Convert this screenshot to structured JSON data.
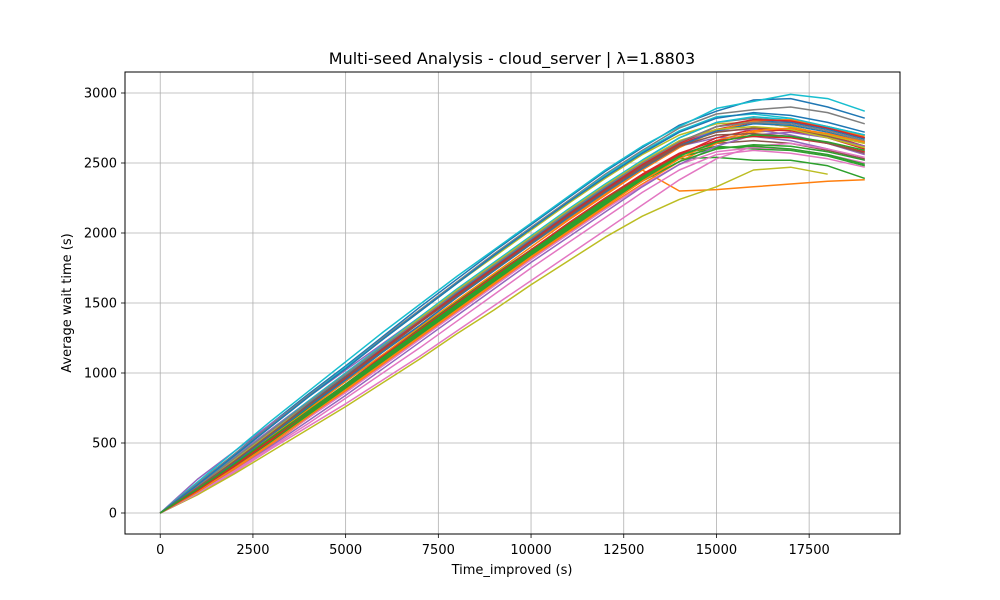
{
  "chart_data": {
    "type": "line",
    "title": "Multi-seed Analysis - cloud_server | λ=1.8803",
    "xlabel": "Time_improved (s)",
    "ylabel": "Average wait time (s)",
    "xlim": [
      -950,
      19950
    ],
    "ylim": [
      -150,
      3150
    ],
    "xticks": [
      0,
      2500,
      5000,
      7500,
      10000,
      12500,
      15000,
      17500
    ],
    "xtick_labels": [
      "0",
      "2500",
      "5000",
      "7500",
      "10000",
      "12500",
      "15000",
      "17500"
    ],
    "yticks": [
      0,
      500,
      1000,
      1500,
      2000,
      2500,
      3000
    ],
    "ytick_labels": [
      "0",
      "500",
      "1000",
      "1500",
      "2000",
      "2500",
      "3000"
    ],
    "grid": true,
    "legend": "none",
    "x": [
      0,
      1000,
      2000,
      3000,
      4000,
      5000,
      6000,
      7000,
      8000,
      9000,
      10000,
      11000,
      12000,
      13000,
      14000,
      15000,
      16000,
      17000,
      18000,
      19000
    ],
    "series": [
      {
        "color": "#1f77b4",
        "values": [
          0,
          210,
          420,
          640,
          850,
          1050,
          1260,
          1470,
          1670,
          1870,
          2060,
          2250,
          2440,
          2610,
          2770,
          2870,
          2950,
          2960,
          2900,
          2820
        ]
      },
      {
        "color": "#ff7f0e",
        "values": [
          0,
          160,
          350,
          550,
          750,
          950,
          1150,
          1340,
          1540,
          1730,
          1920,
          2100,
          2280,
          2450,
          2300,
          2310,
          2330,
          2350,
          2370,
          2380
        ]
      },
      {
        "color": "#2ca02c",
        "values": [
          0,
          150,
          330,
          520,
          710,
          900,
          1090,
          1280,
          1470,
          1660,
          1850,
          2030,
          2210,
          2380,
          2530,
          2540,
          2520,
          2520,
          2480,
          2390
        ]
      },
      {
        "color": "#d62728",
        "values": [
          0,
          170,
          360,
          560,
          760,
          960,
          1160,
          1360,
          1560,
          1750,
          1940,
          2130,
          2310,
          2490,
          2630,
          2740,
          2790,
          2760,
          2700,
          2620
        ]
      },
      {
        "color": "#9467bd",
        "values": [
          0,
          240,
          440,
          640,
          830,
          1020,
          1210,
          1400,
          1590,
          1780,
          1960,
          2150,
          2330,
          2500,
          2620,
          2680,
          2690,
          2660,
          2600,
          2520
        ]
      },
      {
        "color": "#8c564b",
        "values": [
          0,
          160,
          340,
          540,
          730,
          920,
          1110,
          1300,
          1500,
          1690,
          1880,
          2060,
          2240,
          2410,
          2560,
          2640,
          2660,
          2640,
          2590,
          2530
        ]
      },
      {
        "color": "#e377c2",
        "values": [
          0,
          130,
          290,
          460,
          620,
          780,
          950,
          1120,
          1300,
          1480,
          1660,
          1840,
          2020,
          2200,
          2380,
          2530,
          2620,
          2640,
          2600,
          2540
        ]
      },
      {
        "color": "#7f7f7f",
        "values": [
          0,
          190,
          390,
          590,
          790,
          990,
          1190,
          1390,
          1590,
          1780,
          1970,
          2160,
          2340,
          2520,
          2680,
          2790,
          2820,
          2800,
          2750,
          2680
        ]
      },
      {
        "color": "#bcbd22",
        "values": [
          0,
          130,
          280,
          440,
          600,
          760,
          930,
          1100,
          1280,
          1450,
          1630,
          1800,
          1970,
          2120,
          2240,
          2330,
          2450,
          2470,
          2420,
          null
        ]
      },
      {
        "color": "#17becf",
        "values": [
          0,
          220,
          440,
          660,
          870,
          1080,
          1290,
          1490,
          1690,
          1880,
          2070,
          2260,
          2450,
          2620,
          2760,
          2890,
          2940,
          2990,
          2960,
          2870
        ]
      },
      {
        "color": "#1f77b4",
        "values": [
          0,
          180,
          380,
          580,
          780,
          980,
          1180,
          1380,
          1570,
          1760,
          1950,
          2140,
          2320,
          2490,
          2650,
          2760,
          2800,
          2790,
          2740,
          2670
        ]
      },
      {
        "color": "#ff7f0e",
        "values": [
          0,
          140,
          310,
          490,
          680,
          870,
          1060,
          1250,
          1440,
          1630,
          1820,
          2000,
          2180,
          2350,
          2510,
          2640,
          2720,
          2740,
          2700,
          2640
        ]
      },
      {
        "color": "#2ca02c",
        "values": [
          0,
          170,
          360,
          560,
          750,
          940,
          1130,
          1320,
          1510,
          1700,
          1880,
          2060,
          2240,
          2410,
          2560,
          2620,
          2600,
          2590,
          2550,
          2480
        ]
      },
      {
        "color": "#d62728",
        "values": [
          0,
          150,
          330,
          520,
          720,
          910,
          1100,
          1290,
          1490,
          1680,
          1870,
          2050,
          2230,
          2410,
          2560,
          2680,
          2740,
          2730,
          2680,
          2600
        ]
      },
      {
        "color": "#9467bd",
        "values": [
          0,
          200,
          400,
          600,
          800,
          1000,
          1200,
          1390,
          1590,
          1780,
          1970,
          2160,
          2340,
          2510,
          2650,
          2730,
          2740,
          2700,
          2640,
          2560
        ]
      },
      {
        "color": "#e377c2",
        "values": [
          0,
          150,
          320,
          500,
          680,
          860,
          1050,
          1240,
          1430,
          1620,
          1810,
          1990,
          2170,
          2340,
          2490,
          2580,
          2610,
          2600,
          2560,
          2500
        ]
      },
      {
        "color": "#bcbd22",
        "values": [
          0,
          200,
          410,
          620,
          830,
          1030,
          1240,
          1440,
          1640,
          1830,
          2020,
          2210,
          2390,
          2560,
          2700,
          2780,
          2790,
          2760,
          2700,
          2640
        ]
      },
      {
        "color": "#17becf",
        "values": [
          0,
          190,
          390,
          590,
          800,
          1000,
          1200,
          1400,
          1600,
          1790,
          1980,
          2170,
          2350,
          2520,
          2680,
          2790,
          2830,
          2810,
          2760,
          2700
        ]
      },
      {
        "color": "#8c564b",
        "values": [
          0,
          170,
          370,
          570,
          770,
          970,
          1170,
          1360,
          1560,
          1750,
          1940,
          2130,
          2310,
          2480,
          2630,
          2720,
          2750,
          2740,
          2690,
          2620
        ]
      },
      {
        "color": "#7f7f7f",
        "values": [
          0,
          210,
          420,
          630,
          840,
          1040,
          1250,
          1450,
          1650,
          1850,
          2040,
          2230,
          2420,
          2590,
          2750,
          2850,
          2880,
          2900,
          2860,
          2780
        ]
      },
      {
        "color": "#2ca02c",
        "values": [
          0,
          160,
          340,
          530,
          720,
          910,
          1100,
          1290,
          1480,
          1670,
          1860,
          2040,
          2220,
          2390,
          2540,
          2610,
          2620,
          2600,
          2560,
          2490
        ]
      },
      {
        "color": "#ff7f0e",
        "values": [
          0,
          160,
          350,
          540,
          740,
          940,
          1130,
          1330,
          1520,
          1710,
          1900,
          2090,
          2270,
          2450,
          2610,
          2730,
          2800,
          2810,
          2760,
          2690
        ]
      },
      {
        "color": "#1f77b4",
        "values": [
          0,
          170,
          360,
          560,
          760,
          950,
          1150,
          1340,
          1540,
          1730,
          1920,
          2110,
          2290,
          2460,
          2620,
          2730,
          2780,
          2770,
          2720,
          2650
        ]
      },
      {
        "color": "#d62728",
        "values": [
          0,
          180,
          370,
          570,
          770,
          970,
          1170,
          1370,
          1560,
          1750,
          1940,
          2130,
          2310,
          2490,
          2640,
          2760,
          2810,
          2800,
          2750,
          2680
        ]
      },
      {
        "color": "#9467bd",
        "values": [
          0,
          140,
          300,
          480,
          660,
          840,
          1030,
          1220,
          1410,
          1600,
          1790,
          1970,
          2150,
          2330,
          2490,
          2620,
          2700,
          2720,
          2680,
          2620
        ]
      },
      {
        "color": "#e377c2",
        "values": [
          0,
          140,
          300,
          470,
          640,
          820,
          1000,
          1180,
          1370,
          1560,
          1750,
          1930,
          2110,
          2290,
          2450,
          2560,
          2590,
          2570,
          2530,
          2470
        ]
      },
      {
        "color": "#bcbd22",
        "values": [
          0,
          180,
          380,
          580,
          790,
          990,
          1190,
          1390,
          1590,
          1780,
          1970,
          2160,
          2340,
          2510,
          2660,
          2740,
          2760,
          2740,
          2680,
          2610
        ]
      },
      {
        "color": "#17becf",
        "values": [
          0,
          200,
          410,
          620,
          830,
          1040,
          1240,
          1440,
          1640,
          1840,
          2030,
          2220,
          2410,
          2580,
          2730,
          2830,
          2850,
          2820,
          2760,
          2700
        ]
      },
      {
        "color": "#2ca02c",
        "values": [
          0,
          150,
          320,
          510,
          700,
          890,
          1080,
          1270,
          1460,
          1650,
          1840,
          2020,
          2200,
          2370,
          2510,
          2600,
          2630,
          2620,
          2580,
          2520
        ]
      },
      {
        "color": "#7f7f7f",
        "values": [
          0,
          190,
          390,
          590,
          790,
          990,
          1190,
          1380,
          1580,
          1770,
          1960,
          2150,
          2330,
          2500,
          2650,
          2760,
          2790,
          2780,
          2730,
          2660
        ]
      },
      {
        "color": "#1f77b4",
        "values": [
          0,
          200,
          410,
          620,
          830,
          1030,
          1240,
          1440,
          1640,
          1840,
          2030,
          2220,
          2400,
          2570,
          2720,
          2820,
          2860,
          2840,
          2790,
          2720
        ]
      },
      {
        "color": "#ff7f0e",
        "values": [
          0,
          150,
          320,
          500,
          690,
          880,
          1070,
          1260,
          1450,
          1640,
          1830,
          2010,
          2190,
          2370,
          2530,
          2660,
          2730,
          2750,
          2710,
          2650
        ]
      },
      {
        "color": "#d62728",
        "values": [
          0,
          160,
          340,
          530,
          730,
          920,
          1120,
          1310,
          1500,
          1690,
          1880,
          2070,
          2250,
          2420,
          2570,
          2660,
          2690,
          2680,
          2640,
          2580
        ]
      },
      {
        "color": "#8c564b",
        "values": [
          0,
          180,
          370,
          570,
          770,
          970,
          1160,
          1360,
          1550,
          1740,
          1930,
          2120,
          2300,
          2470,
          2620,
          2700,
          2710,
          2690,
          2640,
          2570
        ]
      },
      {
        "color": "#2ca02c",
        "values": [
          0,
          170,
          350,
          540,
          730,
          920,
          1110,
          1300,
          1490,
          1680,
          1870,
          2050,
          2230,
          2400,
          2550,
          2650,
          2700,
          2690,
          2650,
          2590
        ]
      }
    ]
  }
}
